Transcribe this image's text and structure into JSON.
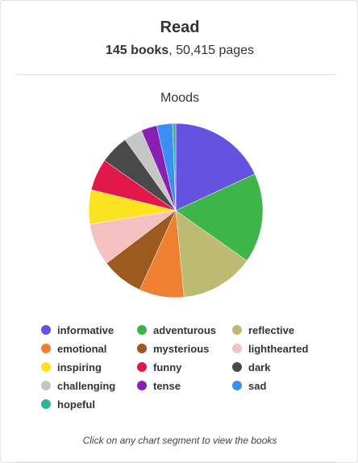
{
  "header": {
    "title": "Read",
    "books": "145 books",
    "pages": ", 50,415 pages"
  },
  "section_title": "Moods",
  "hint": "Click on any chart segment to view the books",
  "chart_data": {
    "type": "pie",
    "title": "Moods",
    "slices": [
      {
        "label": "informative",
        "value": 18.5,
        "color": "#6552e0"
      },
      {
        "label": "adventurous",
        "value": 17.0,
        "color": "#3db54a"
      },
      {
        "label": "reflective",
        "value": 14.0,
        "color": "#bdbb72"
      },
      {
        "label": "emotional",
        "value": 8.5,
        "color": "#f08031"
      },
      {
        "label": "mysterious",
        "value": 8.0,
        "color": "#9c5a1e"
      },
      {
        "label": "lighthearted",
        "value": 8.0,
        "color": "#f5c0c0"
      },
      {
        "label": "inspiring",
        "value": 6.5,
        "color": "#fde21f"
      },
      {
        "label": "funny",
        "value": 6.0,
        "color": "#e3184a"
      },
      {
        "label": "dark",
        "value": 5.5,
        "color": "#4a4a4a"
      },
      {
        "label": "challenging",
        "value": 3.5,
        "color": "#c6c6c6"
      },
      {
        "label": "tense",
        "value": 3.0,
        "color": "#8a1fb4"
      },
      {
        "label": "sad",
        "value": 3.0,
        "color": "#3b8ff2"
      },
      {
        "label": "hopeful",
        "value": 0.6,
        "color": "#2fb39a"
      }
    ]
  }
}
